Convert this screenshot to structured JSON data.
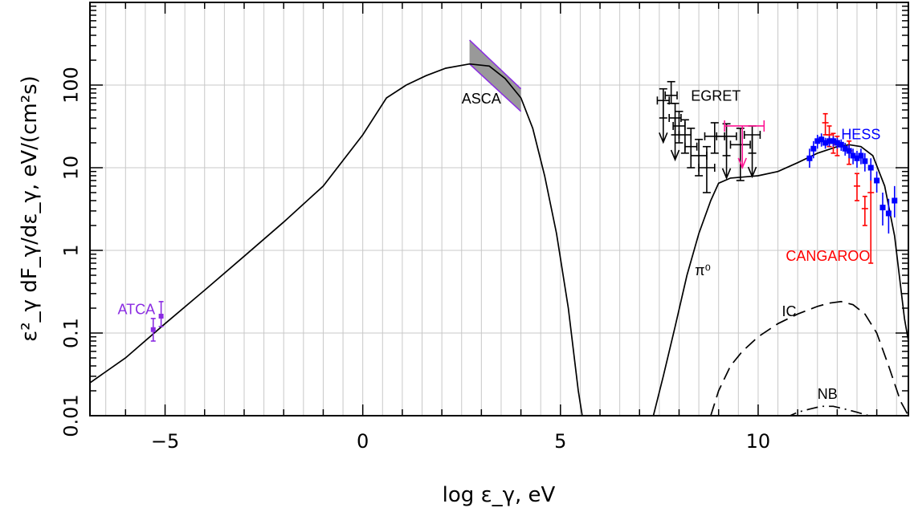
{
  "chart_data": {
    "type": "line",
    "title": "",
    "xlabel": "log ε_γ, eV",
    "ylabel": "ε²_γ dF_γ/dε_γ,  eV/(cm²s)",
    "xlim": [
      -6.9,
      13.8
    ],
    "ylim": [
      0.01,
      1000
    ],
    "yscale": "log",
    "grid": true,
    "colors": {
      "atca": "#8a2be2",
      "asca": "#8a2be2",
      "egret": "#000000",
      "hess": "#0000ff",
      "cangaroo": "#ff0000",
      "magenta": "#ff1493"
    },
    "x_ticks": [
      -5,
      0,
      5,
      10
    ],
    "x_tick_labels": [
      "−5",
      "0",
      "5",
      "10"
    ],
    "y_ticks": [
      0.01,
      0.1,
      1,
      10,
      100
    ],
    "y_tick_labels": [
      "0.01",
      "0.1",
      "1",
      "10",
      "100"
    ],
    "series": [
      {
        "kind": "curve",
        "x": [
          -6.9,
          -6,
          -5,
          -4,
          -3,
          -2,
          -1,
          0,
          0.6,
          1.1,
          1.6,
          2.1,
          2.7,
          3.2,
          3.6,
          4.0,
          4.3,
          4.6,
          4.9,
          5.2,
          5.45,
          5.55
        ],
        "y": [
          0.025,
          0.05,
          0.13,
          0.33,
          0.85,
          2.2,
          6,
          25,
          70,
          100,
          130,
          160,
          180,
          170,
          120,
          70,
          30,
          8,
          1.6,
          0.2,
          0.02,
          0.01
        ]
      },
      {
        "kind": "curve",
        "x": [
          7.35,
          7.6,
          7.9,
          8.2,
          8.5,
          8.8,
          9.0,
          9.3,
          9.6,
          10,
          10.5,
          11,
          11.5,
          12,
          12.3,
          12.6,
          12.9,
          13.2,
          13.45,
          13.7,
          13.8
        ],
        "y": [
          0.01,
          0.03,
          0.12,
          0.5,
          1.6,
          4,
          6.5,
          7.5,
          7.7,
          8,
          9,
          11.5,
          15,
          18,
          19,
          18,
          14,
          6,
          1.5,
          0.15,
          0.08
        ]
      },
      {
        "name": "IC",
        "kind": "dashed",
        "x": [
          8.8,
          9.0,
          9.3,
          9.6,
          10,
          10.5,
          11,
          11.5,
          11.8,
          12.1,
          12.4,
          12.7,
          13.0,
          13.3,
          13.6,
          13.8
        ],
        "y": [
          0.01,
          0.02,
          0.04,
          0.06,
          0.09,
          0.13,
          0.17,
          0.21,
          0.23,
          0.24,
          0.22,
          0.17,
          0.1,
          0.04,
          0.015,
          0.01
        ]
      },
      {
        "name": "NB",
        "kind": "dashdot",
        "x": [
          10.7,
          11.0,
          11.3,
          11.6,
          11.9,
          12.2,
          12.5,
          12.8,
          13.0
        ],
        "y": [
          0.0095,
          0.011,
          0.012,
          0.013,
          0.013,
          0.012,
          0.011,
          0.01,
          0.009
        ]
      }
    ],
    "asca_band": {
      "x": [
        2.7,
        4.0
      ],
      "y_upper": [
        350,
        90
      ],
      "y_lower": [
        180,
        48
      ]
    },
    "atca_points": [
      {
        "x": -5.3,
        "y": 0.11,
        "ylo": 0.08,
        "yhi": 0.15
      },
      {
        "x": -5.1,
        "y": 0.16,
        "ylo": 0.12,
        "yhi": 0.24
      }
    ],
    "egret_points": [
      {
        "x": 7.6,
        "y": 65,
        "xerr": 0.15,
        "ylo": 40,
        "yhi": 90,
        "ul": true
      },
      {
        "x": 7.8,
        "y": 75,
        "xerr": 0.15,
        "ylo": 60,
        "yhi": 110
      },
      {
        "x": 7.9,
        "y": 40,
        "xerr": 0.15,
        "ylo": 25,
        "yhi": 60,
        "ul": true
      },
      {
        "x": 8.0,
        "y": 32,
        "xerr": 0.15,
        "ylo": 20,
        "yhi": 48
      },
      {
        "x": 8.15,
        "y": 25,
        "xerr": 0.15,
        "ylo": 15,
        "yhi": 38
      },
      {
        "x": 8.3,
        "y": 18,
        "xerr": 0.15,
        "ylo": 10,
        "yhi": 30
      },
      {
        "x": 8.5,
        "y": 14,
        "xerr": 0.2,
        "ylo": 8,
        "yhi": 22
      },
      {
        "x": 8.7,
        "y": 10,
        "xerr": 0.2,
        "ylo": 5,
        "yhi": 18
      },
      {
        "x": 8.9,
        "y": 24,
        "xerr": 0.25,
        "ylo": 15,
        "yhi": 35
      },
      {
        "x": 9.2,
        "y": 24,
        "xerr": 0.25,
        "ylo": 14,
        "yhi": 34,
        "ul": true
      },
      {
        "x": 9.55,
        "y": 19,
        "xerr": 0.25,
        "ylo": 7,
        "yhi": 30
      },
      {
        "x": 9.85,
        "y": 25,
        "xerr": 0.2,
        "ylo": 15,
        "yhi": 32,
        "ul": true
      }
    ],
    "magenta_points": [
      {
        "x": 9.6,
        "y": 32,
        "xlo": 9.15,
        "xhi": 10.15,
        "ul": true
      }
    ],
    "hess_points": [
      {
        "x": 11.3,
        "y": 13,
        "ylo": 10,
        "yhi": 17
      },
      {
        "x": 11.4,
        "y": 17,
        "ylo": 13,
        "yhi": 21
      },
      {
        "x": 11.5,
        "y": 21,
        "ylo": 17,
        "yhi": 25
      },
      {
        "x": 11.6,
        "y": 22,
        "ylo": 18,
        "yhi": 26
      },
      {
        "x": 11.7,
        "y": 20,
        "ylo": 17,
        "yhi": 23
      },
      {
        "x": 11.8,
        "y": 21,
        "ylo": 18,
        "yhi": 24
      },
      {
        "x": 11.9,
        "y": 21,
        "ylo": 18,
        "yhi": 24
      },
      {
        "x": 12.0,
        "y": 20,
        "ylo": 17,
        "yhi": 23
      },
      {
        "x": 12.1,
        "y": 19,
        "ylo": 16,
        "yhi": 22
      },
      {
        "x": 12.2,
        "y": 17,
        "ylo": 14,
        "yhi": 20
      },
      {
        "x": 12.3,
        "y": 16,
        "ylo": 13,
        "yhi": 19
      },
      {
        "x": 12.4,
        "y": 14,
        "ylo": 11,
        "yhi": 17
      },
      {
        "x": 12.5,
        "y": 13,
        "ylo": 10,
        "yhi": 16
      },
      {
        "x": 12.6,
        "y": 14,
        "ylo": 11,
        "yhi": 17
      },
      {
        "x": 12.7,
        "y": 12,
        "ylo": 9,
        "yhi": 15
      },
      {
        "x": 12.85,
        "y": 10,
        "ylo": 7,
        "yhi": 13
      },
      {
        "x": 13.0,
        "y": 7,
        "ylo": 5,
        "yhi": 9
      },
      {
        "x": 13.15,
        "y": 3.3,
        "ylo": 2,
        "yhi": 5
      },
      {
        "x": 13.3,
        "y": 2.8,
        "ylo": 1.6,
        "yhi": 4.2
      },
      {
        "x": 13.45,
        "y": 4,
        "ylo": 2.5,
        "yhi": 6
      }
    ],
    "cangaroo_points": [
      {
        "x": 11.7,
        "y": 35,
        "ylo": 25,
        "yhi": 45
      },
      {
        "x": 11.8,
        "y": 25,
        "ylo": 18,
        "yhi": 32
      },
      {
        "x": 11.9,
        "y": 20,
        "ylo": 15,
        "yhi": 26
      },
      {
        "x": 12.0,
        "y": 19,
        "ylo": 14,
        "yhi": 24
      },
      {
        "x": 12.3,
        "y": 16,
        "ylo": 11,
        "yhi": 21
      },
      {
        "x": 12.5,
        "y": 6,
        "ylo": 4,
        "yhi": 8.5
      },
      {
        "x": 12.7,
        "y": 3.2,
        "ylo": 2,
        "yhi": 4.5
      },
      {
        "x": 12.85,
        "y": 5,
        "ylo": 0.7,
        "yhi": 10
      }
    ],
    "annotations": [
      {
        "text": "ATCA",
        "x": -6.2,
        "y": 0.17,
        "color": "#8a2be2"
      },
      {
        "text": "ASCA",
        "x": 2.5,
        "y": 60,
        "color": "#000000"
      },
      {
        "text": "EGRET",
        "x": 8.3,
        "y": 65,
        "color": "#000000"
      },
      {
        "text": "HESS",
        "x": 12.1,
        "y": 22,
        "color": "#0000ff"
      },
      {
        "text": "CANGAROO",
        "x": 10.7,
        "y": 0.75,
        "color": "#ff0000"
      },
      {
        "text": "π⁰",
        "x": 8.4,
        "y": 0.5,
        "color": "#000000"
      },
      {
        "text": "IC",
        "x": 10.6,
        "y": 0.16,
        "color": "#000000"
      },
      {
        "text": "NB",
        "x": 11.5,
        "y": 0.016,
        "color": "#000000"
      }
    ]
  }
}
